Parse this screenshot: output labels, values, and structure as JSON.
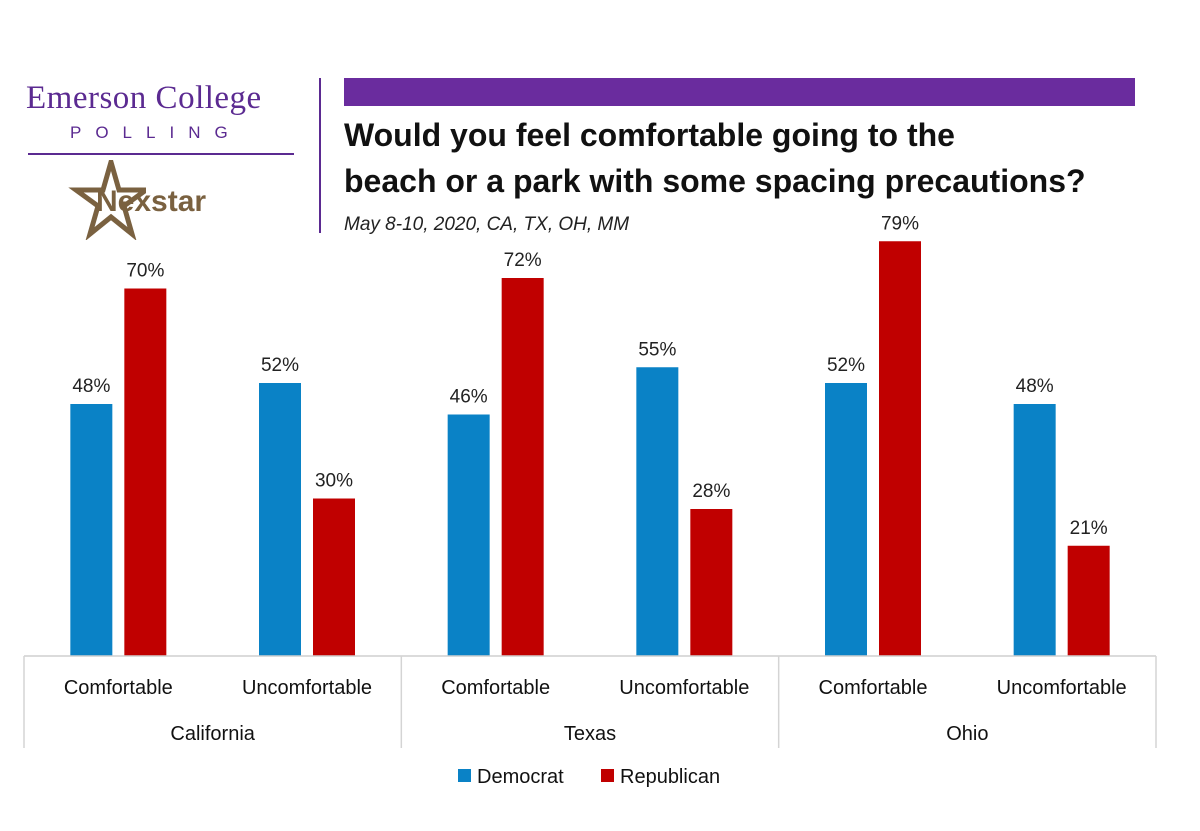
{
  "header": {
    "logo_line1": "Emerson College",
    "logo_line2": "POLLING",
    "partner_logo": "Nexstar",
    "title_line1": "Would you feel comfortable going to the",
    "title_line2": "beach or a park with some spacing precautions?",
    "subtitle": "May 8-10, 2020, CA, TX, OH, MM"
  },
  "colors": {
    "brand_purple": "#6a2c9e",
    "democrat": "#0a82c6",
    "republican": "#c00000"
  },
  "chart_data": {
    "type": "bar",
    "title": "Would you feel comfortable going to the beach or a park with some spacing precautions?",
    "groups": [
      "California",
      "Texas",
      "Ohio"
    ],
    "categories": [
      "Comfortable",
      "Uncomfortable",
      "Comfortable",
      "Uncomfortable",
      "Comfortable",
      "Uncomfortable"
    ],
    "series": [
      {
        "name": "Democrat",
        "values": [
          48,
          52,
          46,
          55,
          52,
          48
        ],
        "labels": [
          "48%",
          "52%",
          "46%",
          "55%",
          "52%",
          "48%"
        ]
      },
      {
        "name": "Republican",
        "values": [
          70,
          30,
          72,
          28,
          79,
          21
        ],
        "labels": [
          "70%",
          "30%",
          "72%",
          "28%",
          "79%",
          "21%"
        ]
      }
    ],
    "ylim": [
      0,
      80
    ],
    "grid": false,
    "legend": "bottom-center"
  }
}
